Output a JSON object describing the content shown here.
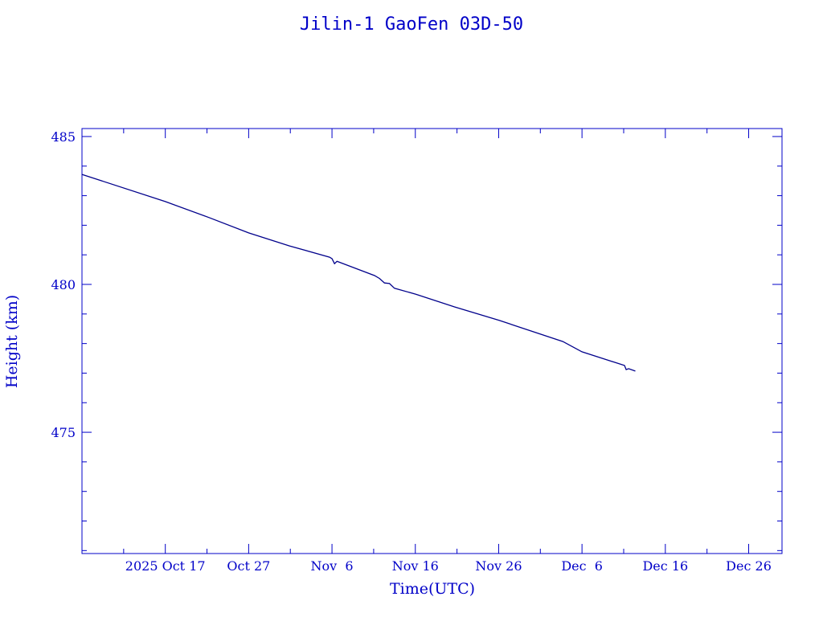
{
  "chart_data": {
    "type": "line",
    "title": "Jilin-1 GaoFen 03D-50",
    "xlabel": "Time(UTC)",
    "ylabel": "Height (km)",
    "x_units": "days since 2025 Oct 7",
    "xlim": [
      0,
      84
    ],
    "ylim": [
      470.9,
      485.27
    ],
    "x_ticks": [
      {
        "value": 10,
        "label": "2025 Oct 17"
      },
      {
        "value": 20,
        "label": "Oct 27"
      },
      {
        "value": 30,
        "label": "Nov  6"
      },
      {
        "value": 40,
        "label": "Nov 16"
      },
      {
        "value": 50,
        "label": "Nov 26"
      },
      {
        "value": 60,
        "label": "Dec  6"
      },
      {
        "value": 70,
        "label": "Dec 16"
      },
      {
        "value": 80,
        "label": "Dec 26"
      }
    ],
    "y_ticks": [
      {
        "value": 475,
        "label": "475"
      },
      {
        "value": 480,
        "label": "480"
      },
      {
        "value": 485,
        "label": "485"
      }
    ],
    "y_minor_step": 1,
    "grid": false,
    "color": "#00008b",
    "axis_color": "#0000c8",
    "series": [
      {
        "name": "Height",
        "x": [
          0,
          10.0,
          15.25,
          20.0,
          24.9,
          29.7,
          30.0,
          30.3,
          30.6,
          35.1,
          35.7,
          36.3,
          36.9,
          37.5,
          40.06,
          44.7,
          50.1,
          57.7,
          60.0,
          65.1,
          65.3,
          65.6,
          66.4
        ],
        "y": [
          483.72,
          482.8,
          482.26,
          481.74,
          481.3,
          480.92,
          480.87,
          480.7,
          480.78,
          480.3,
          480.2,
          480.05,
          480.03,
          479.87,
          479.67,
          479.24,
          478.78,
          478.07,
          477.72,
          477.26,
          477.12,
          477.15,
          477.07
        ]
      }
    ]
  }
}
